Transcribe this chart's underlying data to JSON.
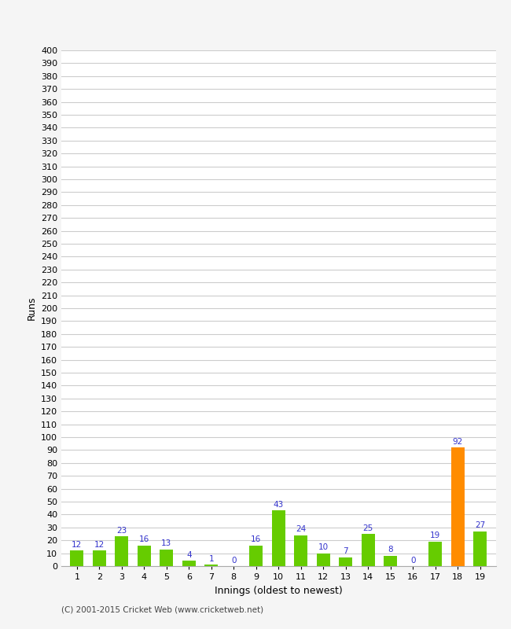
{
  "innings": [
    1,
    2,
    3,
    4,
    5,
    6,
    7,
    8,
    9,
    10,
    11,
    12,
    13,
    14,
    15,
    16,
    17,
    18,
    19
  ],
  "runs": [
    12,
    12,
    23,
    16,
    13,
    4,
    1,
    0,
    16,
    43,
    24,
    10,
    7,
    25,
    8,
    0,
    19,
    92,
    27
  ],
  "bar_colors": [
    "#66cc00",
    "#66cc00",
    "#66cc00",
    "#66cc00",
    "#66cc00",
    "#66cc00",
    "#66cc00",
    "#66cc00",
    "#66cc00",
    "#66cc00",
    "#66cc00",
    "#66cc00",
    "#66cc00",
    "#66cc00",
    "#66cc00",
    "#66cc00",
    "#66cc00",
    "#ff8c00",
    "#66cc00"
  ],
  "xlabel": "Innings (oldest to newest)",
  "ylabel": "Runs",
  "ylim": [
    0,
    400
  ],
  "yticks": [
    0,
    10,
    20,
    30,
    40,
    50,
    60,
    70,
    80,
    90,
    100,
    110,
    120,
    130,
    140,
    150,
    160,
    170,
    180,
    190,
    200,
    210,
    220,
    230,
    240,
    250,
    260,
    270,
    280,
    290,
    300,
    310,
    320,
    330,
    340,
    350,
    360,
    370,
    380,
    390,
    400
  ],
  "label_color": "#3333cc",
  "label_fontsize": 7.5,
  "axis_fontsize": 9,
  "tick_fontsize": 8,
  "background_color": "#f5f5f5",
  "plot_bg_color": "#ffffff",
  "footer_text": "(C) 2001-2015 Cricket Web (www.cricketweb.net)",
  "grid_color": "#cccccc",
  "bar_width": 0.6
}
